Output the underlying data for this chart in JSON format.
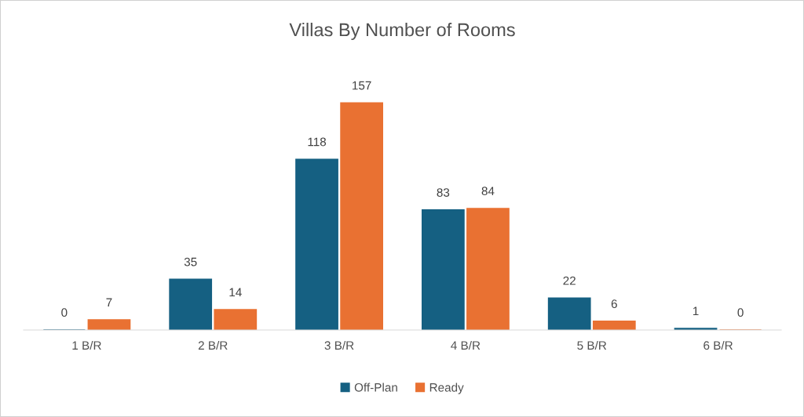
{
  "chart_data": {
    "type": "bar",
    "title": "Villas By Number of Rooms",
    "categories": [
      "1 B/R",
      "2 B/R",
      "3 B/R",
      "4 B/R",
      "5 B/R",
      "6 B/R"
    ],
    "series": [
      {
        "name": "Off-Plan",
        "color": "#156082",
        "values": [
          0,
          35,
          118,
          83,
          22,
          1
        ]
      },
      {
        "name": "Ready",
        "color": "#e97132",
        "values": [
          7,
          14,
          157,
          84,
          6,
          0
        ]
      }
    ],
    "data_labels": true,
    "legend": "bottom"
  }
}
